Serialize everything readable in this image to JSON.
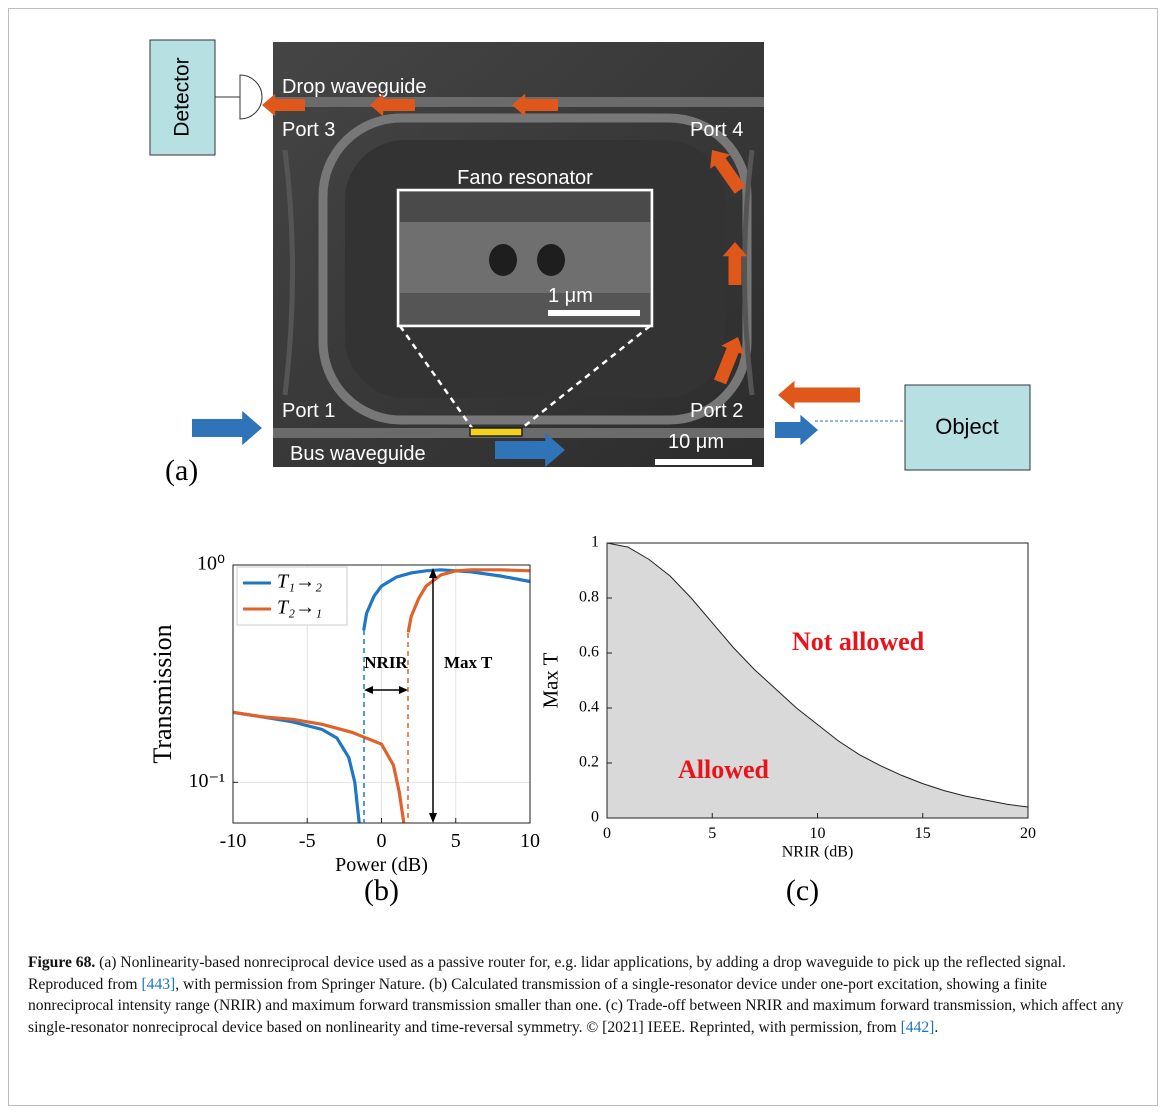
{
  "diagram": {
    "detector": "Detector",
    "drop_waveguide": "Drop waveguide",
    "port_3": "Port 3",
    "port_4": "Port 4",
    "fano_resonator": "Fano resonator",
    "inset_scale": "1 μm",
    "port_1": "Port 1",
    "port_2": "Port 2",
    "bus_waveguide": "Bus waveguide",
    "scale": "10 μm",
    "object": "Object",
    "panel_label": "(a)"
  },
  "chart_data": [
    {
      "type": "line",
      "panel_label": "(b)",
      "xlabel": "Power (dB)",
      "ylabel": "Transmission",
      "xlim": [
        -10,
        10
      ],
      "xticks": [
        -10,
        -5,
        0,
        5,
        10
      ],
      "ylim": [
        0.065,
        1
      ],
      "yscale": "log",
      "yticks": [
        {
          "value": 0.1,
          "label": "10⁻¹"
        },
        {
          "value": 1,
          "label": "10⁰"
        }
      ],
      "grid": true,
      "legend": "upper left",
      "annotations": [
        "NRIR",
        "Max T"
      ],
      "series": [
        {
          "name": "T₁→₂",
          "color": "#1f77c4",
          "x": [
            -10,
            -8,
            -6,
            -4,
            -3,
            -2.2,
            -1.8,
            -1.5,
            -1.35,
            -1.2,
            -1,
            -0.5,
            0,
            1,
            2,
            3,
            4,
            6,
            8,
            10
          ],
          "values": [
            0.21,
            0.2,
            0.19,
            0.175,
            0.16,
            0.13,
            0.1,
            0.065,
            null,
            0.5,
            0.6,
            0.72,
            0.8,
            0.88,
            0.92,
            0.94,
            0.95,
            0.93,
            0.89,
            0.84
          ]
        },
        {
          "name": "T₂→₁",
          "color": "#e0622a",
          "x": [
            -10,
            -8,
            -6,
            -4,
            -2,
            0,
            0.8,
            1.2,
            1.5,
            1.65,
            1.8,
            2,
            2.5,
            3,
            4,
            5,
            6,
            8,
            10
          ],
          "values": [
            0.21,
            0.2,
            0.195,
            0.185,
            0.17,
            0.15,
            0.12,
            0.09,
            0.065,
            null,
            0.49,
            0.58,
            0.7,
            0.8,
            0.9,
            0.94,
            0.95,
            0.95,
            0.94
          ]
        }
      ]
    },
    {
      "type": "area",
      "panel_label": "(c)",
      "xlabel": "NRIR (dB)",
      "ylabel": "Max T",
      "xlim": [
        0,
        20
      ],
      "xticks": [
        0,
        5,
        10,
        15,
        20
      ],
      "ylim": [
        0,
        1
      ],
      "yticks": [
        0,
        0.2,
        0.4,
        0.6,
        0.8,
        1
      ],
      "grid": false,
      "annotations": [
        "Not allowed",
        "Allowed"
      ],
      "series": [
        {
          "color": "#d9d9d9",
          "x": [
            0,
            1,
            2,
            3,
            4,
            5,
            6,
            7,
            8,
            9,
            10,
            11,
            12,
            13,
            14,
            15,
            16,
            17,
            18,
            19,
            20
          ],
          "values": [
            1,
            0.985,
            0.94,
            0.88,
            0.8,
            0.71,
            0.62,
            0.54,
            0.47,
            0.4,
            0.34,
            0.28,
            0.23,
            0.19,
            0.155,
            0.125,
            0.1,
            0.08,
            0.065,
            0.05,
            0.04
          ]
        }
      ]
    }
  ],
  "caption": {
    "label": "Figure 68.",
    "parts": [
      " (a) Nonlinearity-based nonreciprocal device used as a passive router for, e.g. lidar applications, by adding a drop waveguide to pick up the reflected signal. Reproduced from ",
      "[443]",
      ", with permission from Springer Nature. (b) Calculated transmission of a single-resonator device under one-port excitation, showing a finite nonreciprocal intensity range (NRIR) and maximum forward transmission smaller than one. (c) Trade-off between NRIR and maximum forward transmission, which affect any single-resonator nonreciprocal device based on nonlinearity and time-reversal symmetry. © [2021] IEEE. Reprinted, with permission, from ",
      "[442]",
      "."
    ]
  }
}
